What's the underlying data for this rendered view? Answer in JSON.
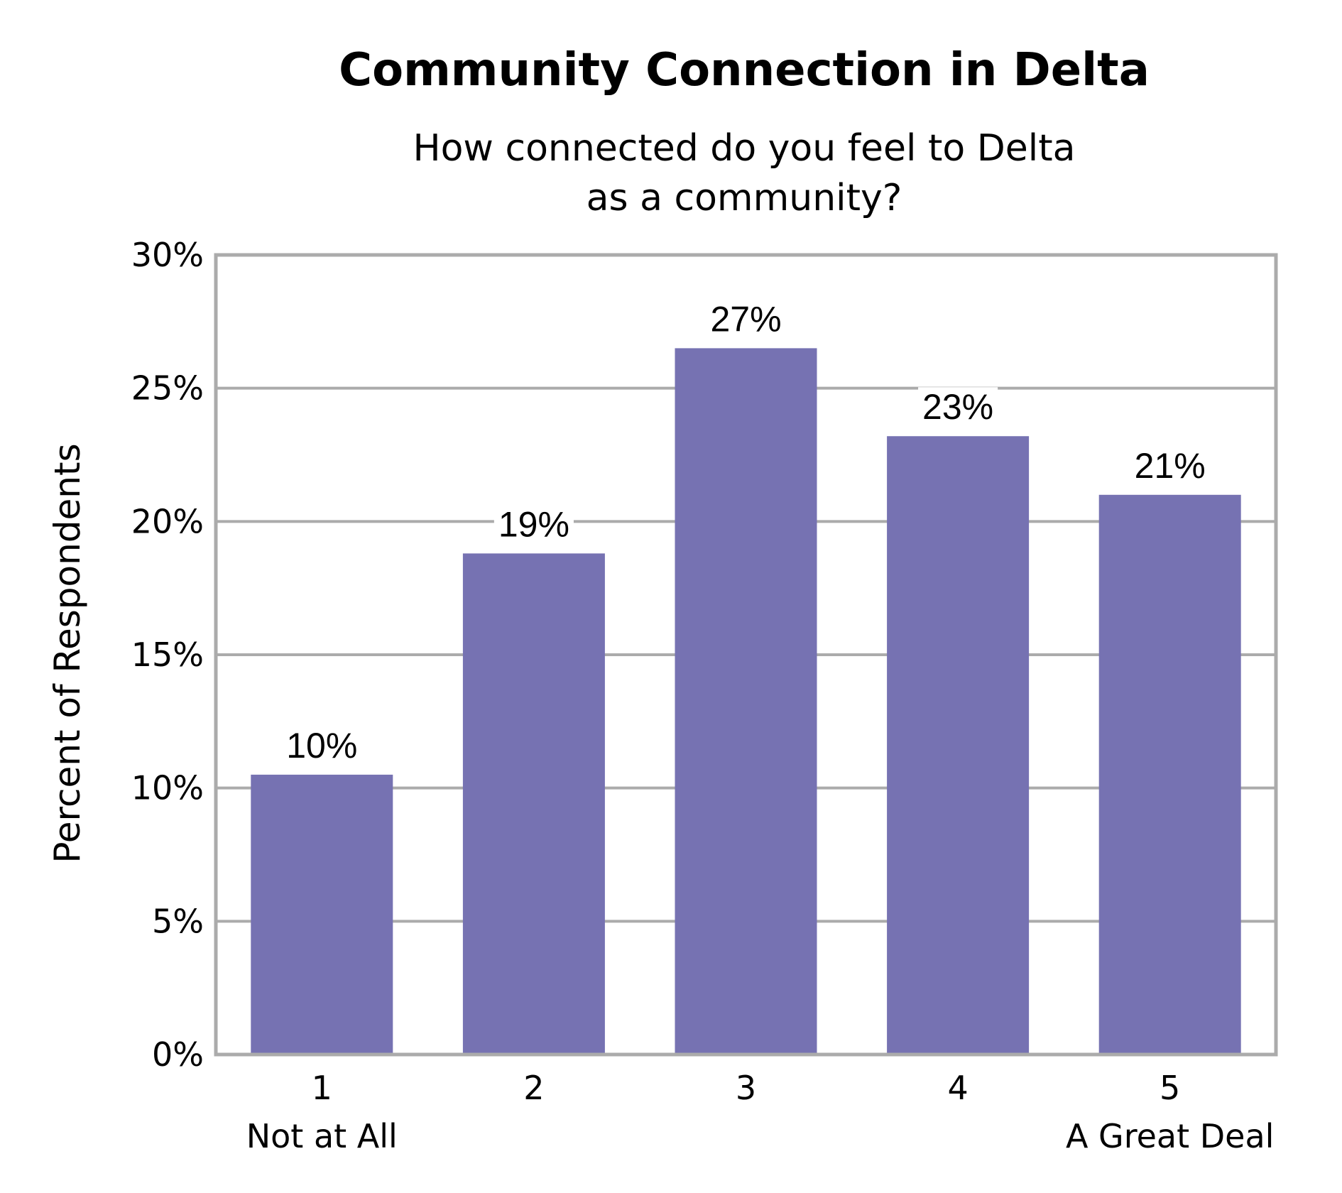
{
  "chart_data": {
    "type": "bar",
    "title": "Community Connection in Delta",
    "subtitle": [
      "How connected do you feel to Delta",
      "as a community?"
    ],
    "ylabel": "Percent of Respondents",
    "xlabel": "",
    "categories": [
      "1",
      "2",
      "3",
      "4",
      "5"
    ],
    "category_sublabels": [
      "Not at All",
      "",
      "",
      "",
      "A Great Deal"
    ],
    "values": [
      10.5,
      18.8,
      26.5,
      23.2,
      21.0
    ],
    "value_labels": [
      "10%",
      "19%",
      "27%",
      "23%",
      "21%"
    ],
    "ylim": [
      0,
      30
    ],
    "yticks": [
      0,
      5,
      10,
      15,
      20,
      25,
      30
    ],
    "ytick_labels": [
      "0%",
      "5%",
      "10%",
      "15%",
      "20%",
      "25%",
      "30%"
    ],
    "grid": true,
    "colors": {
      "bar": "#7672B2",
      "grid": "#ABABAB",
      "frame": "#ABABAB"
    }
  }
}
